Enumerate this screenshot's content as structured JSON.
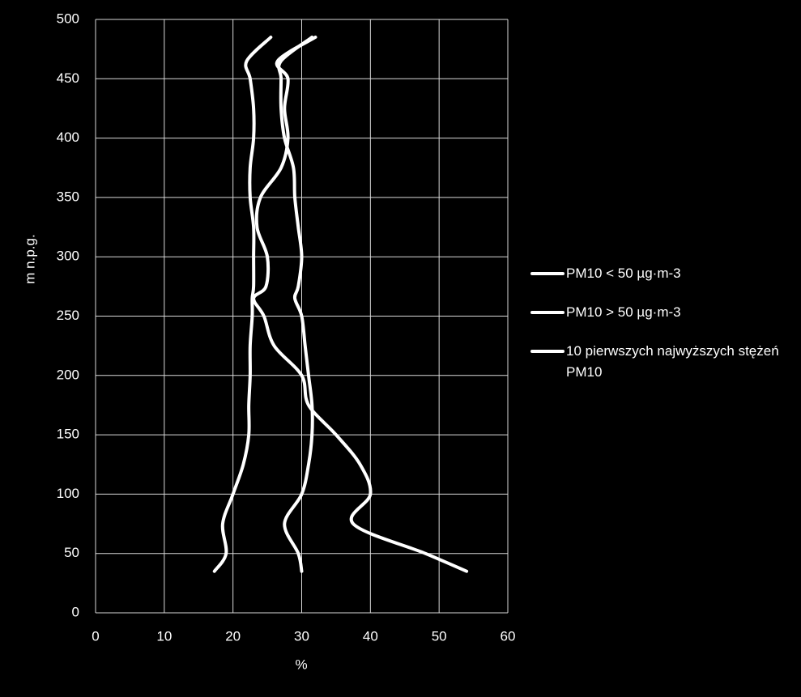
{
  "chart_data": {
    "type": "line",
    "xlabel": "%",
    "ylabel": "m n.p.g.",
    "xlim": [
      0,
      60
    ],
    "xticks": [
      0,
      10,
      20,
      30,
      40,
      50,
      60
    ],
    "ylim": [
      0,
      500
    ],
    "yticks": [
      0,
      50,
      100,
      150,
      200,
      250,
      300,
      350,
      400,
      450,
      500
    ],
    "grid": true,
    "legend": "right",
    "heights": [
      35,
      50,
      75,
      100,
      125,
      150,
      175,
      200,
      225,
      250,
      265,
      275,
      300,
      325,
      350,
      375,
      400,
      425,
      450,
      465,
      485
    ],
    "series": [
      {
        "name": "PM10 < 50 µg·m-3",
        "color": "#ffffff",
        "values": [
          17.3,
          19,
          18.5,
          20,
          21.5,
          22.3,
          22.3,
          22.5,
          22.5,
          22.8,
          22.8,
          23,
          23,
          23,
          22.5,
          22.5,
          23,
          23,
          22.5,
          22,
          25.5
        ]
      },
      {
        "name": "PM10 > 50 µg·m-3",
        "color": "#ffffff",
        "values": [
          30,
          29.5,
          27.5,
          30,
          31,
          31.5,
          31.5,
          31,
          30.5,
          30,
          29,
          29.5,
          30,
          29.5,
          29,
          28.8,
          27.5,
          27,
          27,
          27,
          31.5
        ]
      },
      {
        "name": "10 pierwszych najwyższych stężeń PM10",
        "color": "#ffffff",
        "values": [
          54,
          48,
          37.5,
          40,
          38.5,
          35,
          31,
          30,
          26,
          24.5,
          23,
          24.8,
          25,
          23.5,
          24,
          27,
          28,
          27.5,
          28,
          26.5,
          32
        ]
      }
    ]
  }
}
